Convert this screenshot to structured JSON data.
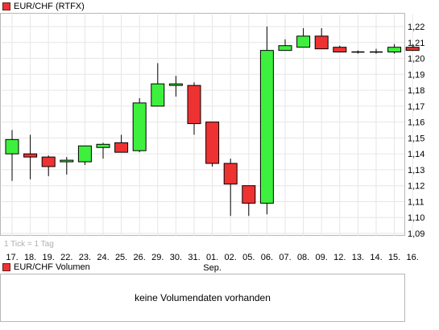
{
  "chart_title": "EUR/CHF (RTFX)",
  "volume_title": "EUR/CHF Volumen",
  "volume_message": "keine Volumendaten vorhanden",
  "tick_note": "1 Tick = 1 Tag",
  "colors": {
    "up": "#3ef03e",
    "down": "#ee3232",
    "grid": "#e6e6e6",
    "legend": "#ee3232"
  },
  "chart_data": {
    "type": "candlestick",
    "x_month_label": "Sep.",
    "ylim": [
      1.09,
      1.22
    ],
    "yticks": [
      "1,22",
      "1,21",
      "1,20",
      "1,19",
      "1,18",
      "1,17",
      "1,16",
      "1,15",
      "1,14",
      "1,13",
      "1,12",
      "1,11",
      "1,10",
      "1,09"
    ],
    "grid": true,
    "categories": [
      "17.",
      "18.",
      "19.",
      "22.",
      "23.",
      "24.",
      "25.",
      "26.",
      "29.",
      "30.",
      "31.",
      "01.",
      "02.",
      "05.",
      "06.",
      "07.",
      "08.",
      "09.",
      "12.",
      "13.",
      "14.",
      "15.",
      "16."
    ],
    "open": [
      1.14,
      1.14,
      1.138,
      1.135,
      1.135,
      1.144,
      1.147,
      1.142,
      1.17,
      1.183,
      1.183,
      1.16,
      1.134,
      1.12,
      1.109,
      1.205,
      1.207,
      1.214,
      1.207,
      1.204,
      1.204,
      1.204,
      1.207
    ],
    "high": [
      1.155,
      1.152,
      1.139,
      1.138,
      1.145,
      1.147,
      1.152,
      1.175,
      1.197,
      1.189,
      1.185,
      1.16,
      1.137,
      1.12,
      1.22,
      1.212,
      1.219,
      1.219,
      1.208,
      1.205,
      1.206,
      1.209,
      1.209
    ],
    "low": [
      1.123,
      1.124,
      1.126,
      1.127,
      1.133,
      1.137,
      1.141,
      1.141,
      1.17,
      1.176,
      1.152,
      1.132,
      1.101,
      1.101,
      1.102,
      1.205,
      1.207,
      1.206,
      1.204,
      1.203,
      1.203,
      1.203,
      1.205
    ],
    "close": [
      1.149,
      1.138,
      1.132,
      1.136,
      1.145,
      1.146,
      1.141,
      1.172,
      1.184,
      1.184,
      1.159,
      1.134,
      1.121,
      1.109,
      1.205,
      1.208,
      1.214,
      1.206,
      1.204,
      1.204,
      1.204,
      1.207,
      1.205
    ]
  }
}
